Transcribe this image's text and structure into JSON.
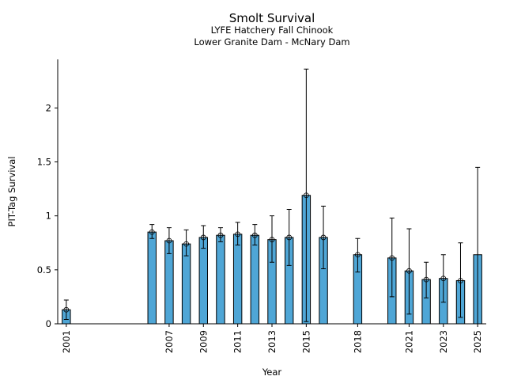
{
  "chart_data": {
    "type": "bar",
    "title": "Smolt Survival",
    "subtitle1": "LYFE Hatchery Fall Chinook",
    "subtitle2": "Lower Granite Dam - McNary Dam",
    "xlabel": "Year",
    "ylabel": "PIT-Tag Survival",
    "xlim": [
      2000.5,
      2025.5
    ],
    "ylim": [
      0,
      2.45
    ],
    "yticks": [
      0,
      0.5,
      1,
      1.5,
      2
    ],
    "ytick_labels": [
      "0",
      "0.5",
      "1",
      "1.5",
      "2"
    ],
    "xticks": [
      2001,
      2007,
      2009,
      2011,
      2013,
      2015,
      2018,
      2021,
      2023,
      2025
    ],
    "xtick_labels": [
      "2001",
      "2007",
      "2009",
      "2011",
      "2013",
      "2015",
      "2018",
      "2021",
      "2023",
      "2025"
    ],
    "bars": [
      {
        "year": 2001,
        "value": 0.13,
        "lower": 0.04,
        "upper": 0.22
      },
      {
        "year": 2006,
        "value": 0.85,
        "lower": 0.79,
        "upper": 0.92
      },
      {
        "year": 2007,
        "value": 0.77,
        "lower": 0.65,
        "upper": 0.89
      },
      {
        "year": 2008,
        "value": 0.74,
        "lower": 0.63,
        "upper": 0.87
      },
      {
        "year": 2009,
        "value": 0.8,
        "lower": 0.7,
        "upper": 0.91
      },
      {
        "year": 2010,
        "value": 0.82,
        "lower": 0.76,
        "upper": 0.89
      },
      {
        "year": 2011,
        "value": 0.83,
        "lower": 0.73,
        "upper": 0.94
      },
      {
        "year": 2012,
        "value": 0.82,
        "lower": 0.73,
        "upper": 0.92
      },
      {
        "year": 2013,
        "value": 0.78,
        "lower": 0.57,
        "upper": 1.0
      },
      {
        "year": 2014,
        "value": 0.8,
        "lower": 0.54,
        "upper": 1.06
      },
      {
        "year": 2015,
        "value": 1.19,
        "lower": 0.02,
        "upper": 2.36
      },
      {
        "year": 2016,
        "value": 0.8,
        "lower": 0.51,
        "upper": 1.09
      },
      {
        "year": 2018,
        "value": 0.64,
        "lower": 0.48,
        "upper": 0.79
      },
      {
        "year": 2020,
        "value": 0.61,
        "lower": 0.25,
        "upper": 0.98
      },
      {
        "year": 2021,
        "value": 0.49,
        "lower": 0.09,
        "upper": 0.88
      },
      {
        "year": 2022,
        "value": 0.41,
        "lower": 0.24,
        "upper": 0.57
      },
      {
        "year": 2023,
        "value": 0.42,
        "lower": 0.2,
        "upper": 0.64
      },
      {
        "year": 2024,
        "value": 0.4,
        "lower": 0.06,
        "upper": 0.75
      },
      {
        "year": 2025,
        "value": 0.64,
        "lower": 0.0,
        "upper": 1.45,
        "no_point": true
      }
    ],
    "bar_color": "#4fa6d6",
    "grid": false,
    "legend": false
  }
}
